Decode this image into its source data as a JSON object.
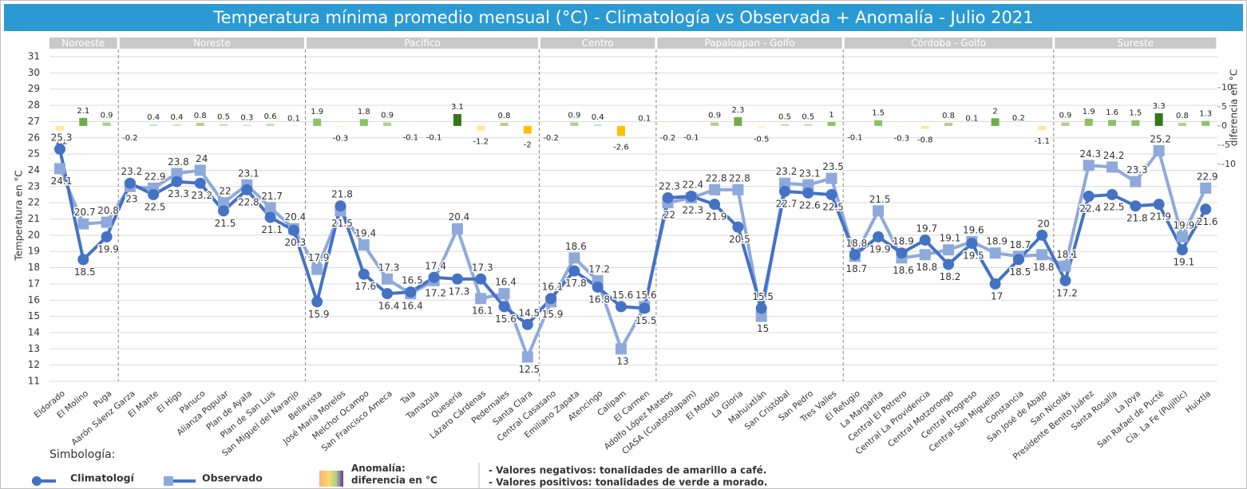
{
  "chart_data": {
    "type": "line",
    "title": "Temperatura mínima promedio mensual (°C)  -   Climatología vs Observada + Anomalía  -  Julio  2021",
    "ylabel": "Temperatura en °C",
    "y2label": "diferencia en °C",
    "regions": [
      {
        "name": "Noroeste",
        "count": 3
      },
      {
        "name": "Noreste",
        "count": 8
      },
      {
        "name": "Pacífico",
        "count": 10
      },
      {
        "name": "Centro",
        "count": 5
      },
      {
        "name": "Papaloapan - Golfo",
        "count": 8
      },
      {
        "name": "Córdoba - Golfo",
        "count": 9
      },
      {
        "name": "Sureste",
        "count": 7
      }
    ],
    "categories": [
      "Eldorado",
      "El Molino",
      "Puga",
      "Aarón Sáenz Garza",
      "El Mante",
      "El Higo",
      "Pánuco",
      "Alianza Popular",
      "Plan de Ayala",
      "Plan de San Luis",
      "San Miguel del Naranjo",
      "Bellavista",
      "José María Morelos",
      "Melchor Ocampo",
      "San Francisco Ameca",
      "Tala",
      "Tamazula",
      "Quesería",
      "Lázaro Cárdenas",
      "Pedernales",
      "Santa Clara",
      "Central Casasano",
      "Emiliano Zapata",
      "Atencingo",
      "Calipam",
      "El Carmen",
      "Adolfo López Mateos",
      "CIASA (Cuatotolapam)",
      "El Modelo",
      "La Gloria",
      "Mahuixtlán",
      "San Cristóbal",
      "San Pedro",
      "Tres Valles",
      "El Refugio",
      "La Margarita",
      "Central El Potrero",
      "Central La Providencia",
      "Central Motzorongo",
      "Central Progreso",
      "Central San Miguelito",
      "Constancia",
      "San José de Abajo",
      "San Nicolás",
      "Presidente Benito Juárez",
      "Santa Rosalía",
      "La Joya",
      "San Rafael de Pucté",
      "Cía. La Fe (Pujiltic)",
      "Huixtla"
    ],
    "series": [
      {
        "name": "Climatologí",
        "color": "#4472c4",
        "marker": "circle",
        "values": [
          25.3,
          18.5,
          19.9,
          23.2,
          22.5,
          23.3,
          23.2,
          21.5,
          22.8,
          21.1,
          20.3,
          15.9,
          21.8,
          17.6,
          16.4,
          16.5,
          17.4,
          17.3,
          17.3,
          15.6,
          14.5,
          16.1,
          17.8,
          16.8,
          15.6,
          15.5,
          22.3,
          22.4,
          21.9,
          20.5,
          15.5,
          22.7,
          22.6,
          22.5,
          18.8,
          19.9,
          18.9,
          19.7,
          18.2,
          19.5,
          17.0,
          18.5,
          20.0,
          17.2,
          22.4,
          22.5,
          21.8,
          21.9,
          19.1,
          21.6
        ]
      },
      {
        "name": "Observado",
        "color": "#8eaadb",
        "marker": "square",
        "values": [
          24.1,
          20.7,
          20.8,
          23.0,
          22.9,
          23.8,
          24.0,
          22.0,
          23.1,
          21.7,
          20.4,
          17.9,
          21.5,
          19.4,
          17.3,
          16.4,
          17.2,
          20.4,
          16.1,
          16.4,
          12.5,
          15.9,
          18.6,
          17.2,
          13.0,
          15.6,
          22.0,
          22.3,
          22.8,
          22.8,
          15.0,
          23.2,
          23.1,
          23.5,
          18.7,
          21.5,
          18.6,
          18.8,
          19.1,
          19.6,
          18.9,
          18.7,
          18.8,
          18.1,
          24.3,
          24.2,
          23.3,
          25.2,
          19.9,
          22.9
        ]
      },
      {
        "name": "Anomalía: diferencia en °C",
        "type": "bar",
        "axis": "y2",
        "values": [
          -1.2,
          2.1,
          0.9,
          -0.2,
          0.4,
          0.4,
          0.8,
          0.5,
          0.3,
          0.6,
          0.1,
          1.9,
          -0.3,
          1.8,
          0.9,
          -0.1,
          -0.1,
          3.1,
          -1.2,
          0.8,
          -2.0,
          -0.2,
          0.9,
          0.4,
          -2.6,
          0.1,
          -0.2,
          -0.1,
          0.9,
          2.3,
          -0.5,
          0.5,
          0.5,
          1.0,
          -0.1,
          1.5,
          -0.3,
          -0.8,
          0.8,
          0.1,
          2.0,
          0.2,
          -1.1,
          0.9,
          1.9,
          1.6,
          1.5,
          3.3,
          0.8,
          1.3
        ],
        "colors": [
          "#ffe699",
          "#70ad47",
          "#a9d18e",
          "#fff2cc",
          "#c5e0b4",
          "#c5e0b4",
          "#a9d18e",
          "#c5e0b4",
          "#c5e0b4",
          "#c5e0b4",
          "#e2f0d9",
          "#8cc168",
          "#fff2cc",
          "#8cc168",
          "#a9d18e",
          "#fff2cc",
          "#fff2cc",
          "#38761d",
          "#ffe699",
          "#a9d18e",
          "#ffc000",
          "#fff2cc",
          "#a9d18e",
          "#c5e0b4",
          "#ffc000",
          "#e2f0d9",
          "#fff2cc",
          "#fff2cc",
          "#a9d18e",
          "#70ad47",
          "#fff2cc",
          "#c5e0b4",
          "#c5e0b4",
          "#8cc168",
          "#fff2cc",
          "#8cc168",
          "#fff2cc",
          "#ffe699",
          "#a9d18e",
          "#e2f0d9",
          "#70ad47",
          "#e2f0d9",
          "#ffe699",
          "#a9d18e",
          "#8cc168",
          "#8cc168",
          "#8cc168",
          "#38761d",
          "#a9d18e",
          "#8cc168"
        ]
      }
    ],
    "ylim": [
      11,
      31
    ],
    "yticks": [
      11,
      12,
      13,
      14,
      15,
      16,
      17,
      18,
      19,
      20,
      21,
      22,
      23,
      24,
      25,
      26,
      27,
      28,
      29,
      30,
      31
    ],
    "y2lim": [
      -66.7,
      18.1
    ],
    "y2ticks": [
      -10,
      -5,
      0,
      5,
      10
    ],
    "grid": true,
    "legend_title": "Simbología:",
    "notes": [
      "- Valores negativos: tonalidades de amarillo a café.",
      "- Valores positivos: tonalidades de verde a morado."
    ]
  }
}
